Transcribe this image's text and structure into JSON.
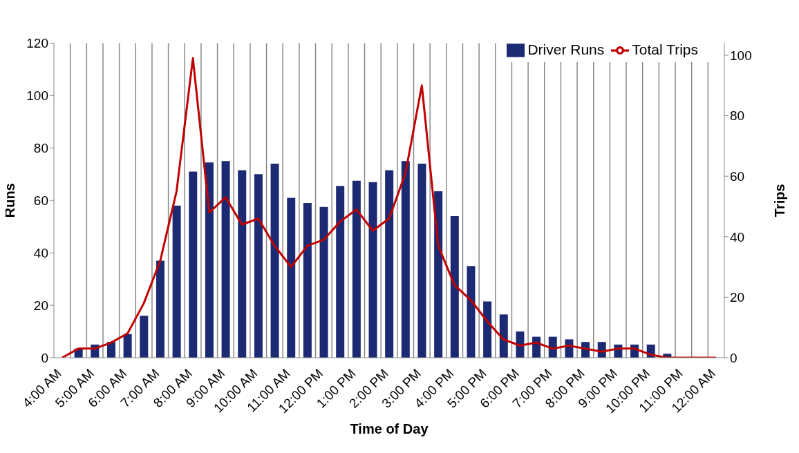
{
  "chart_data": {
    "type": "bar",
    "xlabel": "Time of Day",
    "ylabel": "Runs",
    "y2label": "Trips",
    "categories": [
      "4:00 AM",
      null,
      "5:00 AM",
      null,
      "6:00 AM",
      null,
      "7:00 AM",
      null,
      "8:00 AM",
      null,
      "9:00 AM",
      null,
      "10:00 AM",
      null,
      "11:00 AM",
      null,
      "12:00 PM",
      null,
      "1:00 PM",
      null,
      "2:00 PM",
      null,
      "3:00 PM",
      null,
      "4:00 PM",
      null,
      "5:00 PM",
      null,
      "6:00 PM",
      null,
      "7:00 PM",
      null,
      "8:00 PM",
      null,
      "9:00 PM",
      null,
      "10:00 PM",
      null,
      "11:00 PM",
      null,
      "12:00 AM"
    ],
    "series": [
      {
        "name": "Driver Runs",
        "color": "#1b2a72",
        "values": [
          0,
          3.5,
          5,
          6,
          9,
          16,
          37,
          58,
          71,
          74.5,
          75,
          71.5,
          70,
          74,
          61,
          59,
          57.5,
          65.5,
          67.5,
          67,
          71.5,
          75,
          74,
          63.5,
          54,
          35,
          21.5,
          16.5,
          10,
          8,
          8,
          7,
          6,
          6,
          5,
          5,
          5,
          1.5,
          0,
          0,
          0
        ]
      },
      {
        "name": "Total Trips",
        "type": "line",
        "axis": "y2",
        "color": "#c00000",
        "values": [
          0,
          3,
          3,
          5,
          8,
          18,
          32,
          55,
          99,
          48,
          53,
          44,
          46,
          37,
          30,
          37,
          39,
          45,
          49,
          42,
          46,
          61,
          90,
          37,
          24,
          19,
          12,
          6,
          4,
          5,
          3,
          4,
          3,
          2,
          3,
          3,
          1,
          0,
          0,
          0,
          0
        ]
      }
    ],
    "ylim": [
      0,
      120
    ],
    "yticks": [
      0,
      20,
      40,
      60,
      80,
      100,
      120
    ],
    "y2lim": [
      0,
      104
    ],
    "y2ticks": [
      0,
      20,
      40,
      60,
      80,
      100
    ],
    "grid": "x",
    "legend": "top right",
    "line_style": "solid"
  }
}
